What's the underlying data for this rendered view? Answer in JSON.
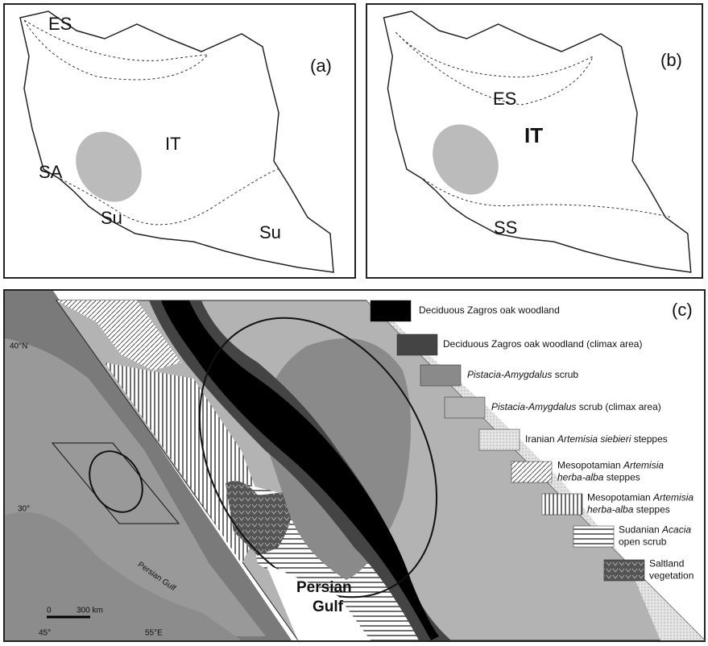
{
  "panels": [
    {
      "label": "(a)",
      "regions": [
        "ES",
        "IT",
        "SA",
        "Su",
        "Su"
      ]
    },
    {
      "label": "(b)",
      "regions": [
        "ES",
        "IT",
        "SS"
      ]
    }
  ],
  "panel_c": {
    "label": "(c)",
    "inset": {
      "lat_labels": [
        "40°N",
        "30°"
      ],
      "lon_labels": [
        "45°",
        "55°E"
      ],
      "sea": "Persian Gulf",
      "scale": [
        "0",
        "300 km"
      ]
    },
    "sea": [
      "Persian",
      "Gulf"
    ],
    "legend": [
      {
        "lines": [
          [
            {
              "text": "Deciduous Zagros oak woodland",
              "italic": false
            }
          ]
        ]
      },
      {
        "lines": [
          [
            {
              "text": "Deciduous Zagros oak woodland (climax area)",
              "italic": false
            }
          ]
        ]
      },
      {
        "lines": [
          [
            {
              "text": "Pistacia-Amygdalus",
              "italic": true
            },
            {
              "text": " scrub",
              "italic": false
            }
          ]
        ]
      },
      {
        "lines": [
          [
            {
              "text": "Pistacia-Amygdalus",
              "italic": true
            },
            {
              "text": " scrub (climax area)",
              "italic": false
            }
          ]
        ]
      },
      {
        "lines": [
          [
            {
              "text": "Iranian ",
              "italic": false
            },
            {
              "text": "Artemisia siebieri",
              "italic": true
            },
            {
              "text": " steppes",
              "italic": false
            }
          ]
        ]
      },
      {
        "lines": [
          [
            {
              "text": "Mesopotamian ",
              "italic": false
            },
            {
              "text": "Artemisia",
              "italic": true
            }
          ],
          [
            {
              "text": "herba-alba",
              "italic": true
            },
            {
              "text": " steppes",
              "italic": false
            }
          ]
        ]
      },
      {
        "lines": [
          [
            {
              "text": "Mesopotamian ",
              "italic": false
            },
            {
              "text": "Artemisia",
              "italic": true
            }
          ],
          [
            {
              "text": "herba-alba",
              "italic": true
            },
            {
              "text": " steppes",
              "italic": false
            }
          ]
        ]
      },
      {
        "lines": [
          [
            {
              "text": "Sudanian ",
              "italic": false
            },
            {
              "text": "Acacia",
              "italic": true
            }
          ],
          [
            {
              "text": "open scrub",
              "italic": false
            }
          ]
        ]
      },
      {
        "lines": [
          [
            {
              "text": "Saltland",
              "italic": false
            }
          ],
          [
            {
              "text": "vegetation",
              "italic": false
            }
          ]
        ]
      }
    ]
  }
}
